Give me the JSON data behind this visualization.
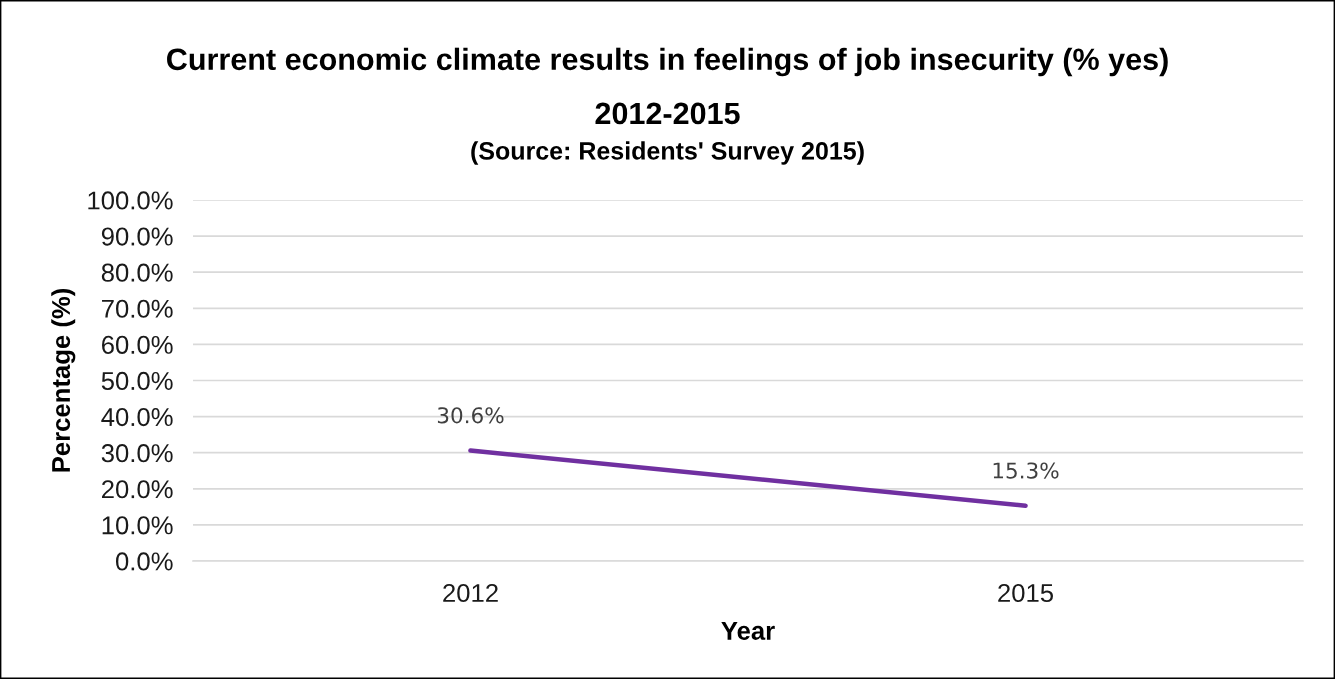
{
  "chart_data": {
    "type": "line",
    "title": "Current economic climate results in feelings of job insecurity (% yes)",
    "subtitle": "2012-2015",
    "annotations": [
      "(Source: Residents' Survey 2015)"
    ],
    "xlabel": "Year",
    "ylabel": "Percentage (%)",
    "categories": [
      "2012",
      "2015"
    ],
    "series": [
      {
        "color": "#7030a0",
        "values": [
          30.6,
          15.3
        ],
        "value_labels": [
          "30.6%",
          "15.3%"
        ]
      }
    ],
    "ylim": [
      0,
      100
    ],
    "yticks": [
      {
        "value": 0,
        "label": "0.0%"
      },
      {
        "value": 10,
        "label": "10.0%"
      },
      {
        "value": 20,
        "label": "20.0%"
      },
      {
        "value": 30,
        "label": "30.0%"
      },
      {
        "value": 40,
        "label": "40.0%"
      },
      {
        "value": 50,
        "label": "50.0%"
      },
      {
        "value": 60,
        "label": "60.0%"
      },
      {
        "value": 70,
        "label": "70.0%"
      },
      {
        "value": 80,
        "label": "80.0%"
      },
      {
        "value": 90,
        "label": "90.0%"
      },
      {
        "value": 100,
        "label": "100.0%"
      }
    ],
    "grid": "y",
    "marker": "none",
    "line_style": "solid"
  }
}
